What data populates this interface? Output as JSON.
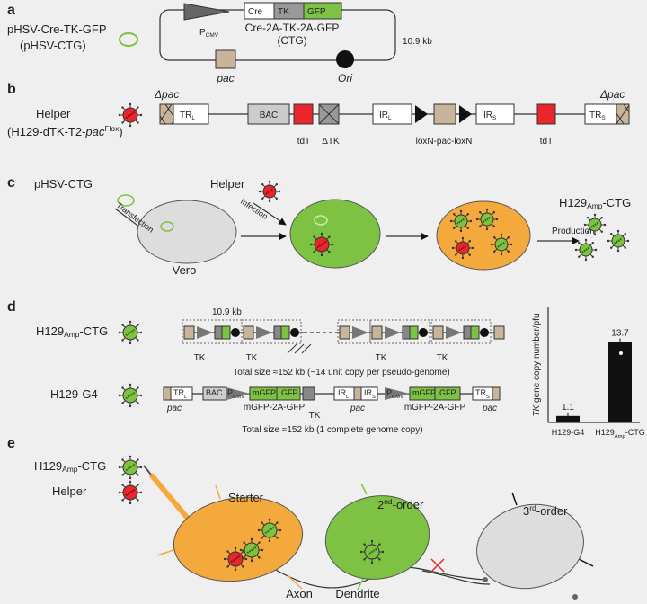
{
  "panel_a": {
    "letter": "a",
    "label_line1": "pHSV-Cre-TK-GFP",
    "label_line2": "(pHSV-CTG)",
    "promoter": {
      "base": "P",
      "sub": "CMV"
    },
    "cre": "Cre",
    "tk": "TK",
    "gfp": "GFP",
    "construct_line1": "Cre-2A-TK-2A-GFP",
    "construct_line2": "(CTG)",
    "size": "10.9 kb",
    "pac": "pac",
    "ori": "Ori"
  },
  "panel_b": {
    "letter": "b",
    "label_line1": "Helper",
    "label_line2": {
      "start": "(H129-dTK-T2-",
      "italic": "pac",
      "sup": "Flox",
      "end": ")"
    },
    "delta_pac_left": "Δpac",
    "tr_l": {
      "base": "TR",
      "sub": "L"
    },
    "bac": "BAC",
    "tdt_1": "tdT",
    "delta_tk": "ΔTK",
    "ir_l": {
      "base": "IR",
      "sub": "L"
    },
    "lox": "loxN-pac-loxN",
    "ir_s": {
      "base": "IR",
      "sub": "S"
    },
    "tdt_2": "tdT",
    "tr_s": {
      "base": "TR",
      "sub": "S"
    },
    "delta_pac_right": "Δpac"
  },
  "panel_c": {
    "letter": "c",
    "plasmid": "pHSV-CTG",
    "transfection": "Transfection",
    "helper": "Helper",
    "infection": "Infection",
    "vero": "Vero",
    "production": "Production",
    "product": {
      "base": "H129",
      "sub": "Amp",
      "rest": "-CTG"
    }
  },
  "panel_d": {
    "letter": "d",
    "virus_1": {
      "base": "H129",
      "sub": "Amp",
      "rest": "-CTG"
    },
    "unit_size": "10.9 kb",
    "tk_labels": [
      "TK",
      "TK",
      "TK",
      "TK"
    ],
    "total_1": "Total size ≈152 kb (~14 unit copy per pseudo-genome)",
    "virus_2": "H129-G4",
    "tr_l": {
      "base": "TR",
      "sub": "L"
    },
    "bac": "BAC",
    "pcmv_1": {
      "base": "P",
      "sub": "CMV"
    },
    "mgfp_1": "mGFP",
    "gfp_1": "GFP",
    "tk": "TK",
    "ir_l": {
      "base": "IR",
      "sub": "L"
    },
    "ir_s": {
      "base": "IR",
      "sub": "S"
    },
    "pcmv_2": {
      "base": "P",
      "sub": "CMV"
    },
    "mgfp_2": "mGFP",
    "gfp_2": "GFP",
    "tr_s": {
      "base": "TR",
      "sub": "S"
    },
    "pac_labels": [
      "pac",
      "pac",
      "pac"
    ],
    "cassette_1": "mGFP-2A-GFP",
    "cassette_2": "mGFP-2A-GFP",
    "total_2": "Total size ≈152 kb (1 complete genome copy)"
  },
  "panel_d_chart": {
    "type": "bar",
    "y_label": {
      "italic": "TK",
      "rest": " gene copy number/pfu"
    },
    "categories": [
      [
        "H129-G4"
      ],
      [
        "H129",
        "Amp",
        "-CTG"
      ]
    ],
    "values": [
      1.1,
      13.7
    ],
    "ylim": [
      0,
      15
    ],
    "color": "#111111"
  },
  "panel_e": {
    "letter": "e",
    "virus": {
      "base": "H129",
      "sub": "Amp",
      "rest": "-CTG"
    },
    "helper": "Helper",
    "starter": "Starter",
    "second": {
      "num": "2",
      "sup": "nd",
      "rest": "-order"
    },
    "third": {
      "num": "3",
      "sup": "rd",
      "rest": "-order"
    },
    "axon": "Axon",
    "dendrite": "Dendrite"
  }
}
